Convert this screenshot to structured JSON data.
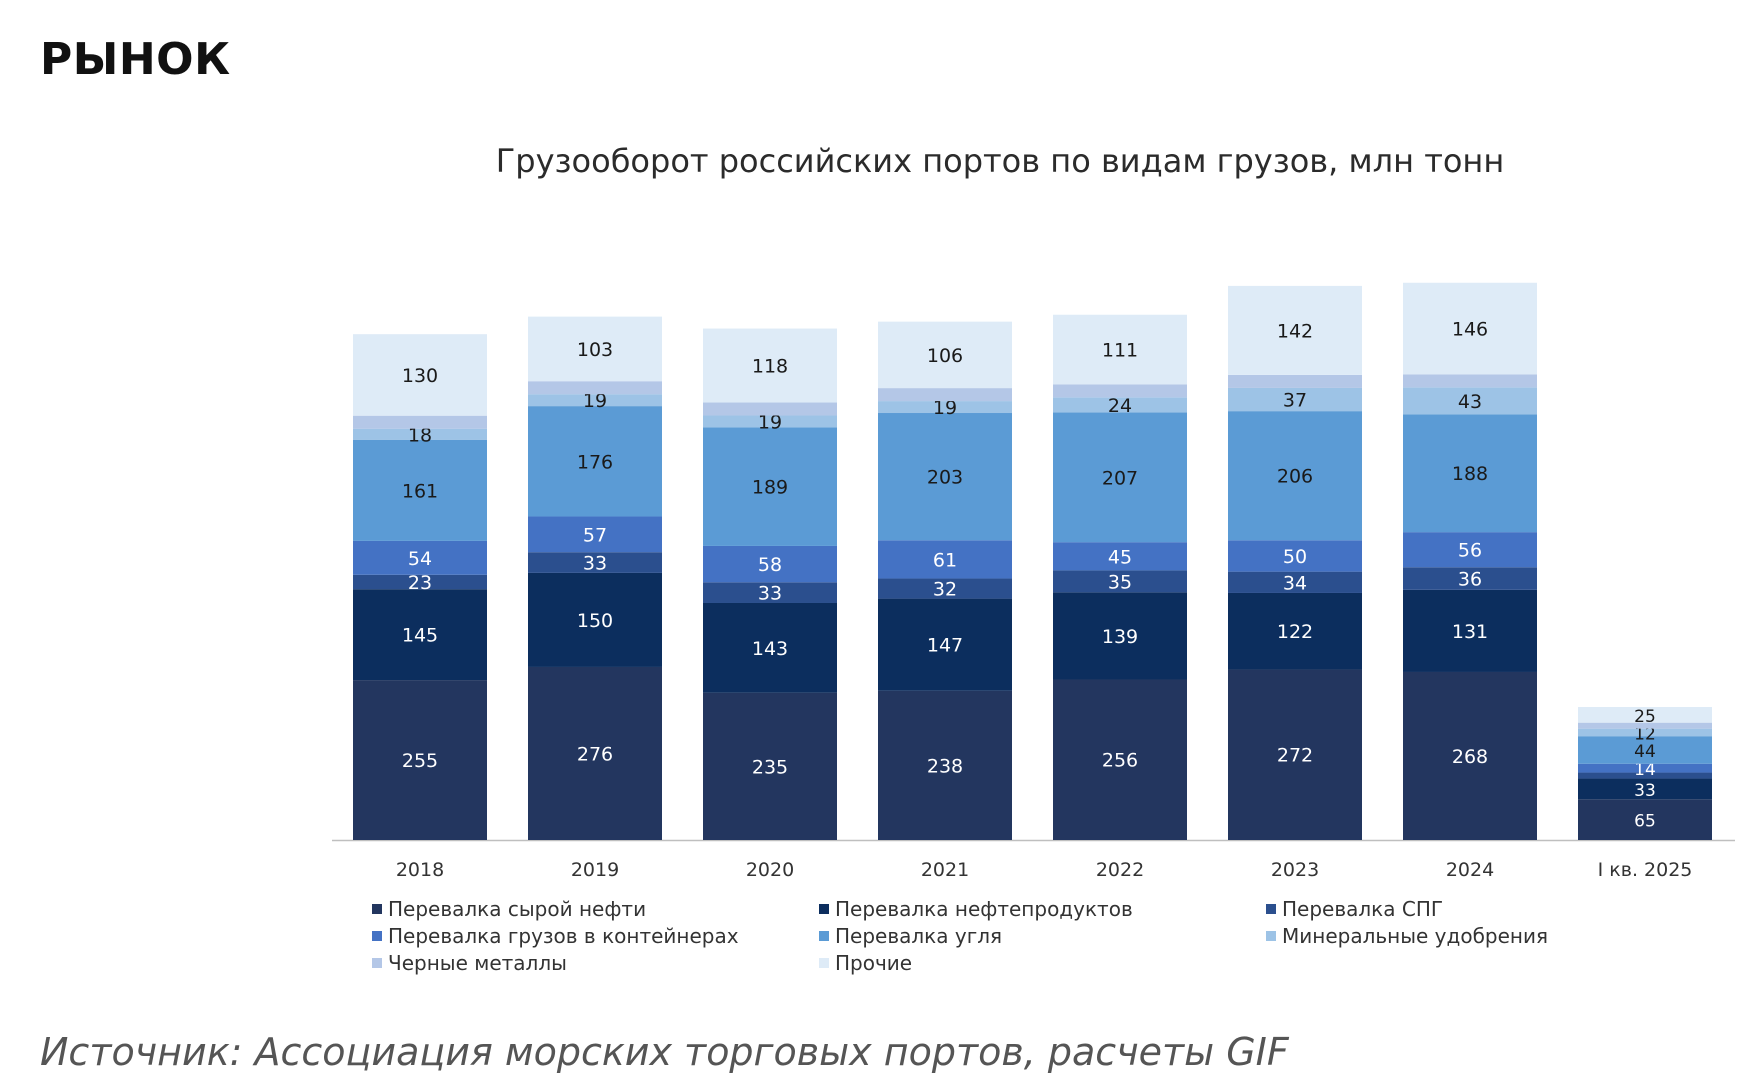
{
  "page": {
    "heading": "РЫНОК",
    "source": "Источник: Ассоциация морских торговых портов, расчеты GIF"
  },
  "chart_data": {
    "type": "bar",
    "stacked": true,
    "title": "Грузооборот российских портов по видам грузов, млн тонн",
    "xlabel": "",
    "ylabel": "",
    "categories": [
      "2018",
      "2019",
      "2020",
      "2021",
      "2022",
      "2023",
      "2024",
      "I кв. 2025"
    ],
    "series": [
      {
        "name": "Перевалка сырой нефти",
        "color": "#23365f",
        "label_color": "#ffffff",
        "values": [
          255,
          276,
          235,
          238,
          256,
          272,
          268,
          65
        ]
      },
      {
        "name": "Перевалка нефтепродуктов",
        "color": "#0c2e5e",
        "label_color": "#ffffff",
        "values": [
          145,
          150,
          143,
          147,
          139,
          122,
          131,
          33
        ]
      },
      {
        "name": "Перевалка СПГ",
        "color": "#2b4f8e",
        "label_color": "#ffffff",
        "values": [
          23,
          33,
          33,
          32,
          35,
          34,
          36,
          null
        ]
      },
      {
        "name": "Перевалка грузов в контейнерах",
        "color": "#4472c4",
        "label_color": "#ffffff",
        "values": [
          54,
          57,
          58,
          61,
          45,
          50,
          56,
          14
        ]
      },
      {
        "name": "Перевалка угля",
        "color": "#5b9bd5",
        "label_color": "#1a1a1a",
        "values": [
          161,
          176,
          189,
          203,
          207,
          206,
          188,
          44
        ]
      },
      {
        "name": "Минеральные удобрения",
        "color": "#9dc3e6",
        "label_color": "#1a1a1a",
        "values": [
          18,
          19,
          19,
          19,
          24,
          37,
          43,
          12
        ]
      },
      {
        "name": "Черные металлы",
        "color": "#b4c7e7",
        "label_color": "#1a1a1a",
        "values": [
          null,
          null,
          null,
          null,
          null,
          null,
          null,
          null
        ]
      },
      {
        "name": "Прочие",
        "color": "#deebf7",
        "label_color": "#1a1a1a",
        "values": [
          130,
          103,
          118,
          106,
          111,
          142,
          146,
          25
        ]
      }
    ],
    "legend_placement": "bottom",
    "grid": false
  }
}
